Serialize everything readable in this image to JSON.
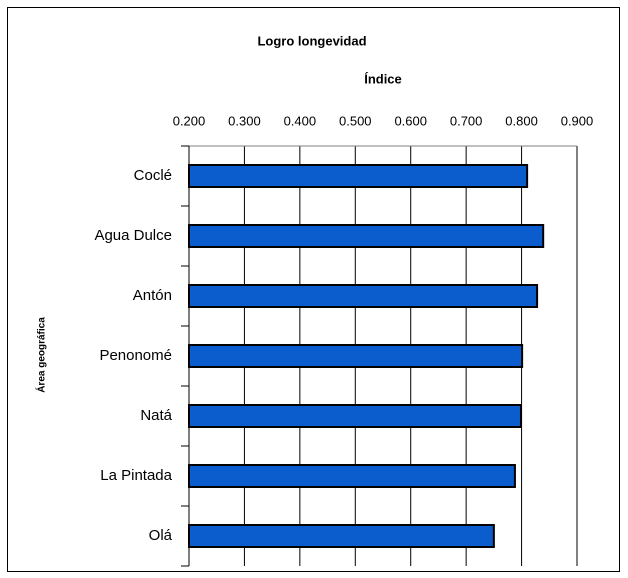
{
  "chart_data": {
    "type": "bar",
    "orientation": "horizontal",
    "title": "Logro longevidad",
    "x_label": "Índice",
    "y_label": "Área geográfica",
    "categories": [
      "Coclé",
      "Agua Dulce",
      "Antón",
      "Penonomé",
      "Natá",
      "La Pintada",
      "Olá"
    ],
    "values": [
      0.81,
      0.839,
      0.828,
      0.801,
      0.799,
      0.788,
      0.75
    ],
    "color": "#0b5ccc",
    "xlim": [
      0.2,
      0.9
    ],
    "xticks": [
      {
        "value": 0.2,
        "label": "0.200"
      },
      {
        "value": 0.3,
        "label": "0.300"
      },
      {
        "value": 0.4,
        "label": "0.400"
      },
      {
        "value": 0.5,
        "label": "0.500"
      },
      {
        "value": 0.6,
        "label": "0.600"
      },
      {
        "value": 0.7,
        "label": "0.700"
      },
      {
        "value": 0.8,
        "label": "0.800"
      },
      {
        "value": 0.9,
        "label": "0.900"
      }
    ],
    "grid": true
  }
}
